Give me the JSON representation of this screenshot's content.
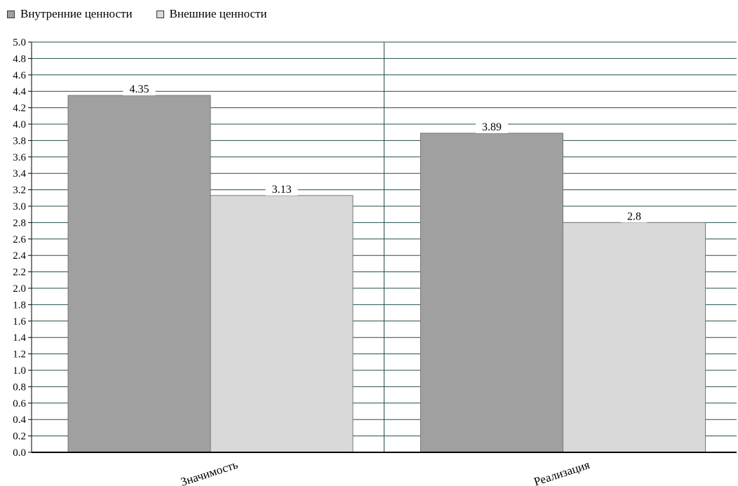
{
  "chart_data": {
    "type": "bar",
    "categories": [
      "Значимость",
      "Реализация"
    ],
    "series": [
      {
        "name": "Внутренние ценности",
        "values": [
          4.35,
          3.89
        ],
        "color": "#a0a0a0"
      },
      {
        "name": "Внешние ценности",
        "values": [
          3.13,
          2.8
        ],
        "color": "#d9d9d9"
      }
    ],
    "value_labels": [
      [
        "4.35",
        "3.89"
      ],
      [
        "3.13",
        "2.8"
      ]
    ],
    "ylim": [
      0,
      5.0
    ],
    "ytick_step": 0.2,
    "yticks": [
      "0.0",
      "0.2",
      "0.4",
      "0.6",
      "0.8",
      "1.0",
      "1.2",
      "1.4",
      "1.6",
      "1.8",
      "2.0",
      "2.2",
      "2.4",
      "2.6",
      "2.8",
      "3.0",
      "3.2",
      "3.4",
      "3.6",
      "3.8",
      "4.0",
      "4.2",
      "4.4",
      "4.6",
      "4.8",
      "5.0"
    ],
    "grid": true,
    "legend_position": "top-left",
    "grid_color": "#1f4f4f"
  }
}
